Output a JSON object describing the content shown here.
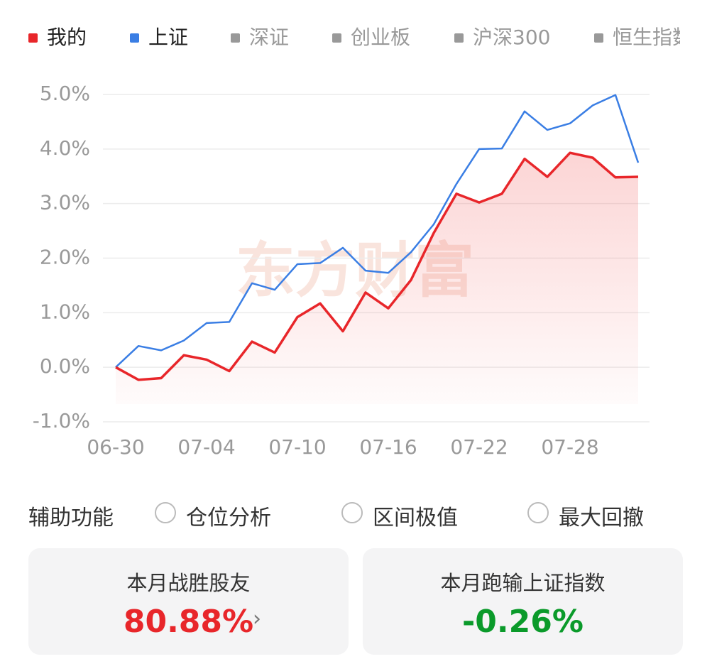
{
  "chart_data": {
    "type": "line",
    "watermark": "东方财富",
    "categories": [
      "06-30",
      null,
      null,
      null,
      "07-04",
      null,
      null,
      null,
      "07-10",
      null,
      null,
      null,
      "07-16",
      null,
      null,
      null,
      "07-22",
      null,
      null,
      null,
      "07-28",
      null,
      null,
      null
    ],
    "series": [
      {
        "name": "我的",
        "color": "#e8262a",
        "values": [
          0.0,
          -0.23,
          -0.2,
          0.22,
          0.14,
          -0.07,
          0.47,
          0.27,
          0.92,
          1.17,
          0.66,
          1.37,
          1.08,
          1.6,
          2.46,
          3.18,
          3.02,
          3.18,
          3.82,
          3.49,
          3.93,
          3.84,
          3.48,
          3.49
        ]
      },
      {
        "name": "上证",
        "color": "#3a7ee4",
        "values": [
          0.0,
          0.39,
          0.31,
          0.49,
          0.81,
          0.83,
          1.54,
          1.42,
          1.89,
          1.91,
          2.19,
          1.77,
          1.73,
          2.11,
          2.62,
          3.36,
          4.0,
          4.01,
          4.69,
          4.35,
          4.47,
          4.8,
          4.99,
          3.75
        ]
      }
    ],
    "inactive_series": [
      {
        "name": "深证",
        "color": "#999999"
      },
      {
        "name": "创业板",
        "color": "#999999"
      },
      {
        "name": "沪深300",
        "color": "#999999"
      },
      {
        "name": "恒生指数",
        "color": "#999999"
      }
    ],
    "ylim": [
      -1,
      5
    ],
    "yticks": [
      {
        "value": -1,
        "label": "-1.0%"
      },
      {
        "value": 0,
        "label": "0.0%"
      },
      {
        "value": 1,
        "label": "1.0%"
      },
      {
        "value": 2,
        "label": "2.0%"
      },
      {
        "value": 3,
        "label": "3.0%"
      },
      {
        "value": 4,
        "label": "4.0%"
      },
      {
        "value": 5,
        "label": "5.0%"
      }
    ],
    "grid": true
  },
  "controls": {
    "label": "辅助功能",
    "options": [
      "仓位分析",
      "区间极值",
      "最大回撤"
    ]
  },
  "cards": [
    {
      "title": "本月战胜股友",
      "value": "80.88%",
      "color": "#e8262a"
    },
    {
      "title": "本月跑输上证指数",
      "value": "-0.26%",
      "color": "#0a9a2a"
    }
  ]
}
